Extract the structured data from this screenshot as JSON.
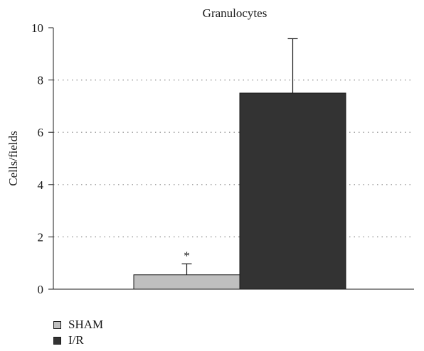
{
  "chart_data": {
    "type": "bar",
    "title": "Granulocytes",
    "xlabel": "",
    "ylabel": "Cells/fields",
    "ylim": [
      0,
      10
    ],
    "yticks": [
      0,
      2,
      4,
      6,
      8,
      10
    ],
    "grid": "horizontal dotted",
    "legend_position": "bottom-left",
    "series": [
      {
        "name": "SHAM",
        "value": 0.55,
        "error": 0.42,
        "color": "#bfbfbf",
        "annotation": "*"
      },
      {
        "name": "I/R",
        "value": 7.5,
        "error": 2.08,
        "color": "#333333",
        "annotation": ""
      }
    ]
  }
}
